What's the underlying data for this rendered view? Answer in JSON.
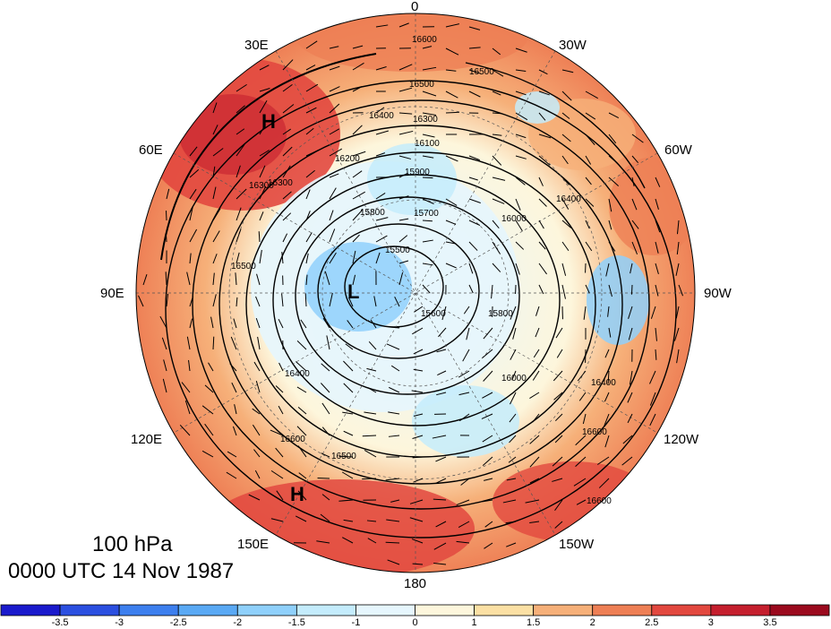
{
  "longitude_labels": {
    "lon_0": "0",
    "lon_30e": "30E",
    "lon_30w": "30W",
    "lon_60e": "60E",
    "lon_60w": "60W",
    "lon_90e": "90E",
    "lon_90w": "90W",
    "lon_120e": "120E",
    "lon_120w": "120W",
    "lon_150e": "150E",
    "lon_150w": "150W",
    "lon_180": "180"
  },
  "caption": {
    "level": "100 hPa",
    "valid_time": "0000 UTC 14 Nov 1987"
  },
  "markers": {
    "high_north": "H",
    "high_south": "H",
    "low_center": "L"
  },
  "contour_labels": [
    "16600",
    "16500",
    "16500",
    "16400",
    "16300",
    "16100",
    "16300",
    "16200",
    "15900",
    "15800",
    "15700",
    "16000",
    "15500",
    "15600",
    "15800",
    "16000",
    "16400",
    "16500",
    "16600",
    "16400",
    "16300",
    "16500",
    "16600",
    "16400",
    "16600"
  ],
  "colorbar": {
    "ticks": [
      "-3.5",
      "-3",
      "-2.5",
      "-2",
      "-1.5",
      "-1",
      "0",
      "1",
      "1.5",
      "2",
      "2.5",
      "3",
      "3.5"
    ],
    "colors": [
      "#1a1acc",
      "#2b4fe0",
      "#3d7fee",
      "#5aa9f4",
      "#8fd0fb",
      "#c4ecfc",
      "#e6f6fd",
      "#fdf6dc",
      "#fbe0a4",
      "#f6b079",
      "#ee7f55",
      "#e2483f",
      "#c51f2e",
      "#9b0a1e"
    ]
  }
}
